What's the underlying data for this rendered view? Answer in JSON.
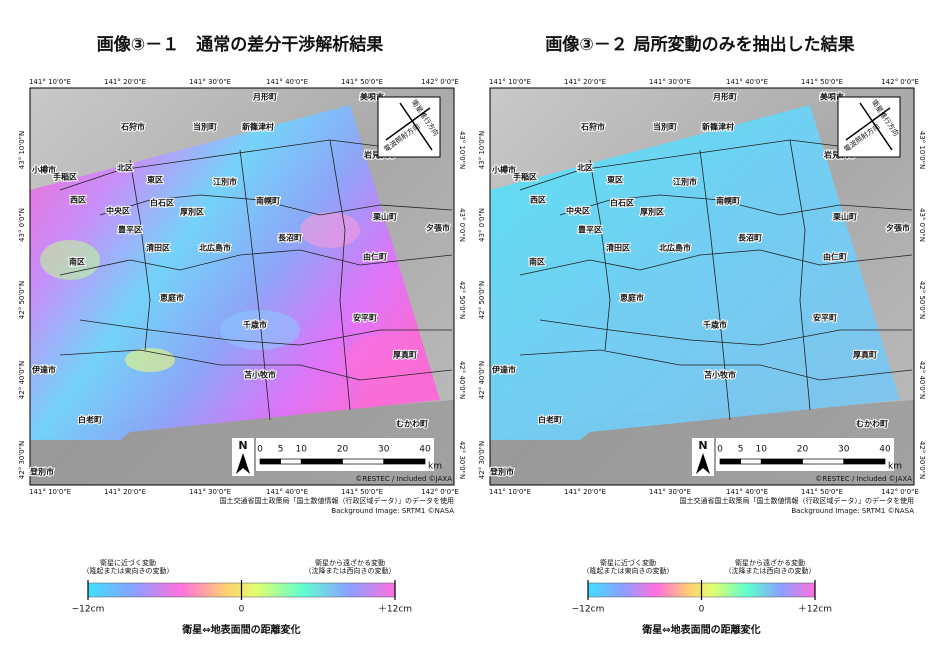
{
  "panels": [
    {
      "title": "画像③－１　通常の差分干渉解析結果"
    },
    {
      "title": "画像③－２ 局所変動のみを抽出した結果"
    }
  ],
  "map": {
    "lon_labels": [
      "141° 10'0\"E",
      "141° 20'0\"E",
      "141° 30'0\"E",
      "141° 40'0\"E",
      "141° 50'0\"E",
      "142° 0'0\"E"
    ],
    "lat_labels": [
      "43° 10'0\"N",
      "43° 0'0\"N",
      "42° 50'0\"N",
      "42° 40'0\"N",
      "42° 30'0\"N"
    ],
    "cities": [
      "月形町",
      "美唄市",
      "石狩市",
      "当別町",
      "新篠津村",
      "岩見沢市",
      "小樽市",
      "北区",
      "手稲区",
      "東区",
      "江別市",
      "西区",
      "中央区",
      "白石区",
      "厚別区",
      "南幌町",
      "栗山町",
      "夕張市",
      "豊平区",
      "清田区",
      "北広島市",
      "長沼町",
      "由仁町",
      "南区",
      "恵庭市",
      "千歳市",
      "安平町",
      "厚真町",
      "伊達市",
      "苫小牧市",
      "白老町",
      "むかわ町",
      "登別市"
    ],
    "direction": [
      "衛星進行方向",
      "電波照射方向"
    ],
    "north": "N",
    "scale": {
      "ticks": [
        0,
        5,
        10,
        20,
        30,
        40
      ],
      "unit": "km"
    },
    "credits": [
      "©RESTEC / Included ©JAXA",
      "国土交通省国土政策局「国土数値情報（行政区域データ）」のデータを使用",
      "Background Image: SRTM1  ©NASA"
    ]
  },
  "legend": {
    "left_note": [
      "衛星に近づく変動",
      "（隆起または東向きの変動）"
    ],
    "right_note": [
      "衛星から遠ざかる変動",
      "（沈降または西向きの変動）"
    ],
    "ticks": [
      {
        "value": -12,
        "label": "−12cm"
      },
      0,
      {
        "value": 12,
        "label": "＋12cm"
      }
    ],
    "caption": "衛星⇔地表面間の距離変化"
  }
}
